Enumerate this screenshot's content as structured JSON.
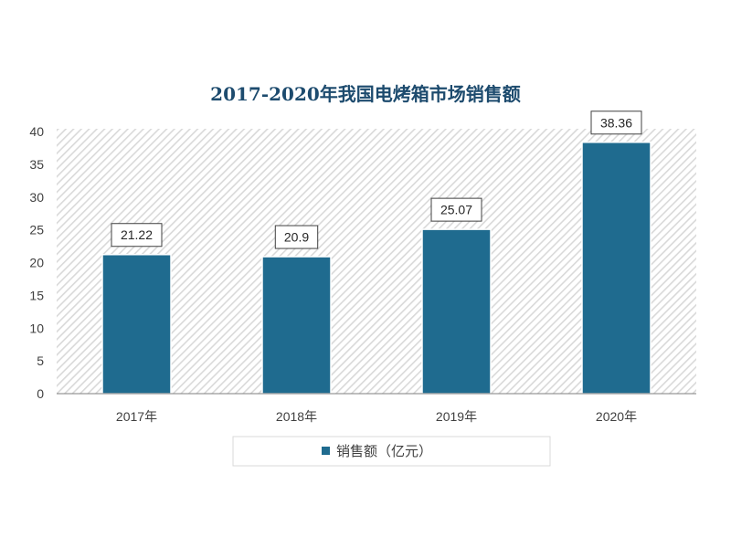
{
  "chart_data": {
    "type": "bar",
    "title": "2017-2020年我国电烤箱市场销售额",
    "categories": [
      "2017年",
      "2018年",
      "2019年",
      "2020年"
    ],
    "series": [
      {
        "name": "销售额（亿元）",
        "values": [
          21.22,
          20.9,
          25.07,
          38.36
        ]
      }
    ],
    "ylim": [
      0,
      40
    ],
    "yticks": [
      0,
      5,
      10,
      15,
      20,
      25,
      30,
      35,
      40
    ],
    "grid": false,
    "data_labels": true,
    "legend_position": "bottom",
    "colors": {
      "bar": "#1f6b8f",
      "title": "#1d4b6e",
      "plot_background_hatch": "#d9d9d9"
    }
  }
}
